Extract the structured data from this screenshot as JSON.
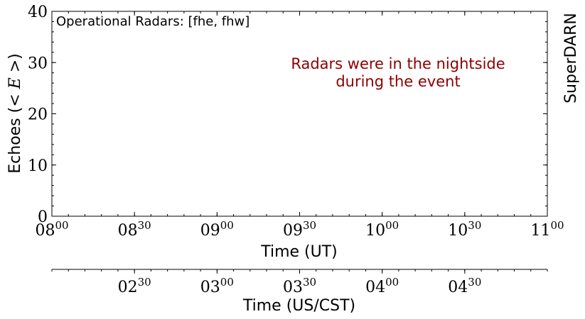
{
  "chart_data": {
    "type": "line",
    "ylabel_prefix": "Echoes (",
    "ylabel_math": "< E >",
    "ylabel_suffix": ")",
    "ylim": [
      0,
      40
    ],
    "yticks": [
      0,
      10,
      20,
      30,
      40
    ],
    "xlabel": "Time (UT)",
    "xlim_hours": [
      8.0,
      11.0
    ],
    "xticks": [
      {
        "h": "08",
        "m": "00"
      },
      {
        "h": "08",
        "m": "30"
      },
      {
        "h": "09",
        "m": "00"
      },
      {
        "h": "09",
        "m": "30"
      },
      {
        "h": "10",
        "m": "00"
      },
      {
        "h": "10",
        "m": "30"
      },
      {
        "h": "11",
        "m": "00"
      }
    ],
    "secondary_xlabel": "Time (US/CST)",
    "secondary_xticks": [
      {
        "h": "02",
        "m": "30"
      },
      {
        "h": "03",
        "m": "00"
      },
      {
        "h": "03",
        "m": "30"
      },
      {
        "h": "04",
        "m": "00"
      },
      {
        "h": "04",
        "m": "30"
      }
    ],
    "annotation_topleft": "Operational Radars: [fhe, fhw]",
    "annotation_center_line1": "Radars were in the nightside",
    "annotation_center_line2": "during the event",
    "annotation_color": "#8b0000",
    "right_label": "SuperDARN",
    "series": []
  }
}
